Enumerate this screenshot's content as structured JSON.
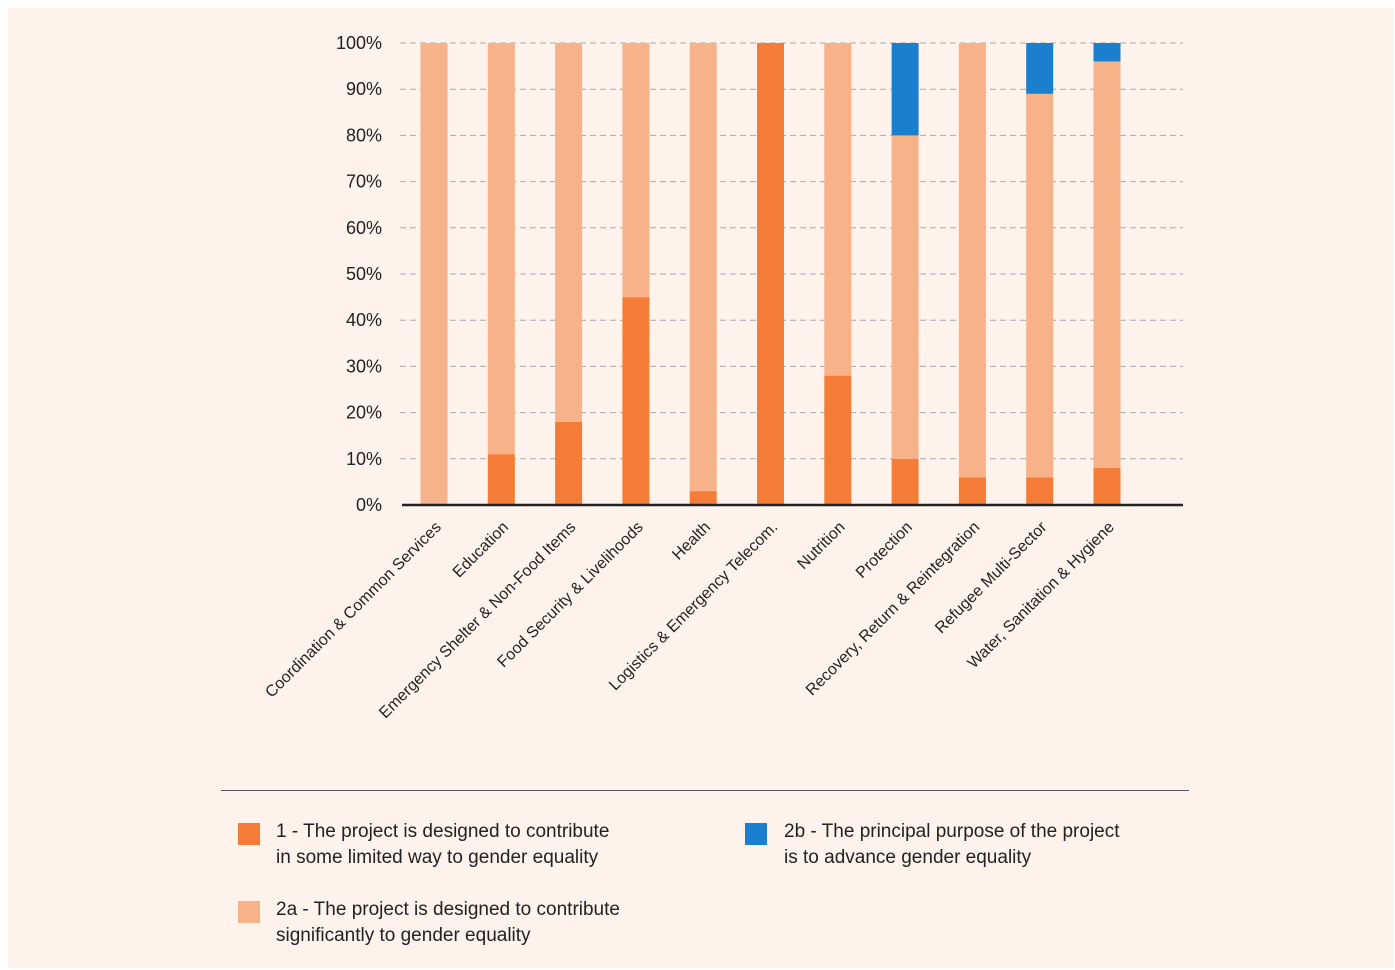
{
  "chart_data": {
    "type": "bar",
    "stacked": true,
    "normalized": true,
    "categories": [
      "Coordination & Common Services",
      "Education",
      "Emergency Shelter & Non-Food Items",
      "Food Security & Livelihoods",
      "Health",
      "Logistics & Emergency Telecom.",
      "Nutrition",
      "Protection",
      "Recovery, Return & Reintegration",
      "Refugee Multi-Sector",
      "Water, Sanitation & Hygiene"
    ],
    "series": [
      {
        "name": "1 - The project is designed to contribute in some limited way to gender equality",
        "color": "#f47c36",
        "values": [
          0,
          11,
          18,
          45,
          3,
          100,
          28,
          10,
          6,
          6,
          8
        ]
      },
      {
        "name": "2a - The project is designed to contribute significantly to gender equality",
        "color": "#f8b28a",
        "values": [
          100,
          89,
          82,
          55,
          97,
          0,
          72,
          70,
          94,
          83,
          88
        ]
      },
      {
        "name": "2b - The principal purpose of the project is to advance gender equality",
        "color": "#1a7fcf",
        "values": [
          0,
          0,
          0,
          0,
          0,
          0,
          0,
          20,
          0,
          11,
          4
        ]
      }
    ],
    "yticks": [
      "0%",
      "10%",
      "20%",
      "30%",
      "40%",
      "50%",
      "60%",
      "70%",
      "80%",
      "90%",
      "100%"
    ],
    "ylim": [
      0,
      100
    ],
    "grid": true,
    "legend_position": "bottom"
  },
  "legend": [
    {
      "line1": "1 - The project is designed to contribute",
      "line2": "in some limited way to gender equality",
      "color": "#f47c36"
    },
    {
      "line1": "2b - The principal purpose of the project",
      "line2": "is to advance gender equality",
      "color": "#1a7fcf"
    },
    {
      "line1": "2a - The project is designed to contribute",
      "line2": "significantly to gender equality",
      "color": "#f8b28a"
    }
  ]
}
